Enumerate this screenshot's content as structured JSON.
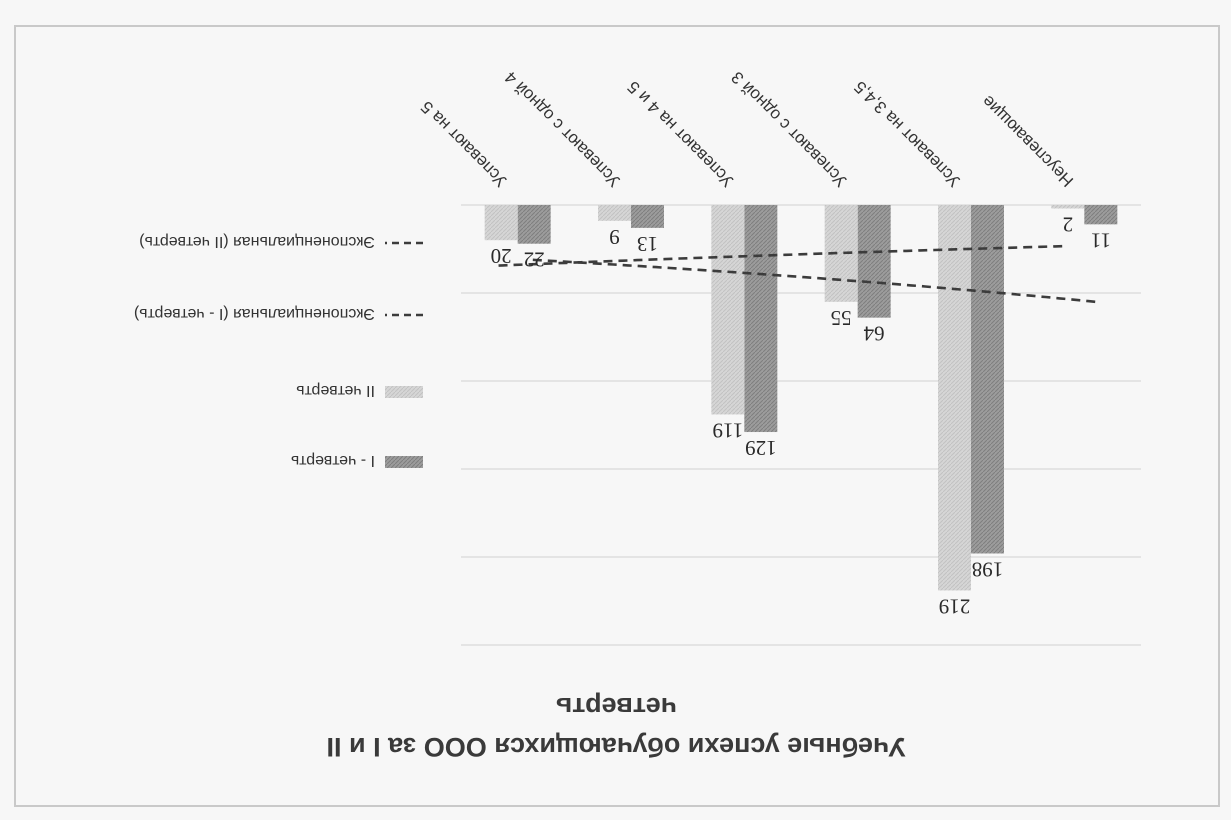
{
  "chart_data": {
    "type": "bar",
    "title": "Учебные успехи обучающихся ООО за I и II четверть",
    "categories": [
      "Неуспевающие",
      "Успевают на 3,4,5",
      "Успевают с одной 3",
      "Успевают на 4 и 5",
      "Успевают с одной 4",
      "Успевают на 5"
    ],
    "series": [
      {
        "name": "I - четверть",
        "values": [
          11,
          198,
          64,
          129,
          13,
          22
        ],
        "color": "#9a9a9a"
      },
      {
        "name": "II четверть",
        "values": [
          2,
          219,
          55,
          119,
          9,
          20
        ],
        "color": "#d2d2d2"
      }
    ],
    "trendlines": [
      {
        "name": "Экспоненциальная (I - четверть)",
        "series": 0,
        "type": "exponential"
      },
      {
        "name": "Экспоненциальная (II четверть)",
        "series": 1,
        "type": "exponential"
      }
    ],
    "ylim": [
      0,
      250
    ],
    "grid": true,
    "legend": "right",
    "xlabel": "",
    "ylabel": ""
  }
}
